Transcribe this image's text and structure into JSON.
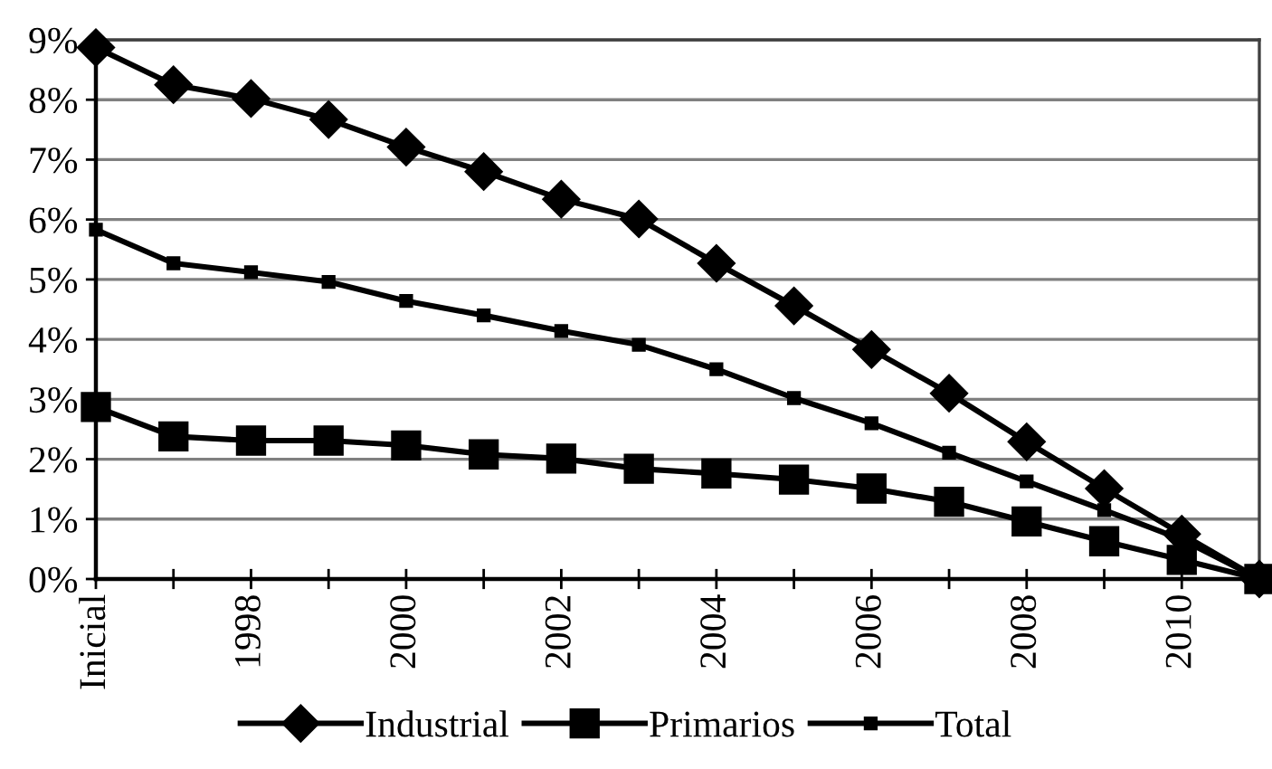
{
  "chart_data": {
    "type": "line",
    "categories": [
      "Inicial",
      null,
      "1998",
      null,
      "2000",
      null,
      "2002",
      null,
      "2004",
      null,
      "2006",
      null,
      "2008",
      null,
      "2010",
      null
    ],
    "series": [
      {
        "name": "Industrial",
        "color": "#000000",
        "marker": "diamond",
        "values": [
          8.87,
          8.25,
          8.02,
          7.67,
          7.21,
          6.8,
          6.34,
          6.01,
          5.27,
          4.56,
          3.83,
          3.1,
          2.29,
          1.51,
          0.75,
          0
        ]
      },
      {
        "name": "Primarios",
        "color": "#000000",
        "marker": "square",
        "values": [
          2.87,
          2.38,
          2.31,
          2.31,
          2.23,
          2.08,
          2.01,
          1.84,
          1.76,
          1.66,
          1.51,
          1.29,
          0.96,
          0.63,
          0.32,
          0
        ]
      },
      {
        "name": "Total",
        "color": "#000000",
        "marker": "square",
        "values": [
          5.83,
          5.27,
          5.12,
          4.96,
          4.64,
          4.4,
          4.14,
          3.91,
          3.5,
          3.02,
          2.6,
          2.11,
          1.63,
          1.15,
          0.66,
          0
        ]
      }
    ],
    "ylim": [
      0,
      9
    ],
    "yticks": [
      {
        "value": 0,
        "label": "0%"
      },
      {
        "value": 1,
        "label": "1%"
      },
      {
        "value": 2,
        "label": "2%"
      },
      {
        "value": 3,
        "label": "3%"
      },
      {
        "value": 4,
        "label": "4%"
      },
      {
        "value": 5,
        "label": "5%"
      },
      {
        "value": 6,
        "label": "6%"
      },
      {
        "value": 7,
        "label": "7%"
      },
      {
        "value": 8,
        "label": "8%"
      },
      {
        "value": 9,
        "label": "9%"
      }
    ],
    "grid": "y",
    "legend": "bottom",
    "line_style": "solid"
  }
}
